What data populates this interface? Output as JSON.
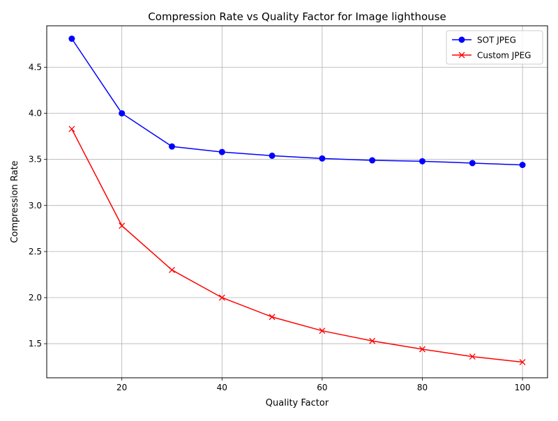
{
  "chart_data": {
    "type": "line",
    "title": "Compression Rate vs Quality Factor for Image lighthouse",
    "xlabel": "Quality Factor",
    "ylabel": "Compression Rate",
    "xlim": [
      5,
      105
    ],
    "ylim": [
      1.13,
      4.95
    ],
    "x_ticks": [
      20,
      40,
      60,
      80,
      100
    ],
    "x_tick_labels": [
      "20",
      "40",
      "60",
      "80",
      "100"
    ],
    "y_ticks": [
      1.5,
      2.0,
      2.5,
      3.0,
      3.5,
      4.0,
      4.5
    ],
    "y_tick_labels": [
      "1.5",
      "2.0",
      "2.5",
      "3.0",
      "3.5",
      "4.0",
      "4.5"
    ],
    "grid": true,
    "legend_position": "top-right",
    "x": [
      10,
      20,
      30,
      40,
      50,
      60,
      70,
      80,
      90,
      100
    ],
    "series": [
      {
        "name": "SOT JPEG",
        "color": "#0000ff",
        "marker": "circle",
        "values": [
          4.81,
          4.0,
          3.64,
          3.58,
          3.54,
          3.51,
          3.49,
          3.48,
          3.46,
          3.44
        ]
      },
      {
        "name": "Custom JPEG",
        "color": "#ff0000",
        "marker": "x",
        "values": [
          3.83,
          2.78,
          2.3,
          2.0,
          1.79,
          1.64,
          1.53,
          1.44,
          1.36,
          1.3
        ]
      }
    ]
  }
}
